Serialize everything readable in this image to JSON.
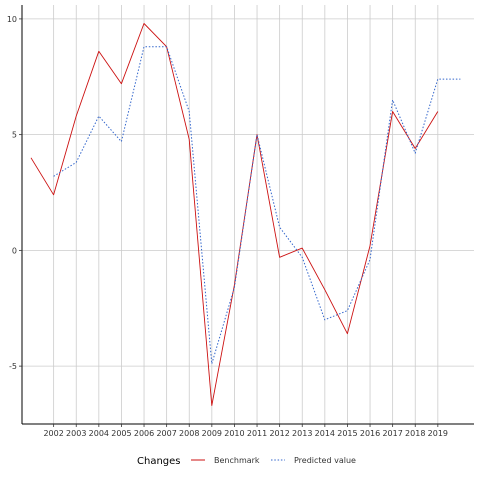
{
  "chart_data": {
    "type": "line",
    "title": "",
    "xlabel": "",
    "ylabel": "",
    "x": [
      2001,
      2002,
      2003,
      2004,
      2005,
      2006,
      2007,
      2008,
      2009,
      2010,
      2011,
      2012,
      2013,
      2014,
      2015,
      2016,
      2017,
      2018,
      2019,
      2020
    ],
    "x_tick_labels": [
      "2002",
      "2003",
      "2004",
      "2005",
      "2006",
      "2007",
      "2008",
      "2009",
      "2010",
      "2011",
      "2012",
      "2013",
      "2014",
      "2015",
      "2016",
      "2017",
      "2018",
      "2019"
    ],
    "y_ticks": [
      -5,
      0,
      5,
      10
    ],
    "y_tick_labels": [
      "-5",
      "0",
      "5",
      "10"
    ],
    "xlim": [
      2000.6,
      2020.6
    ],
    "ylim": [
      -7.5,
      10.6
    ],
    "grid": true,
    "legend": {
      "title": "Changes",
      "placement": "bottom",
      "entries": [
        "Benchmark",
        "Predicted value"
      ]
    },
    "series": [
      {
        "name": "Benchmark",
        "color": "#cc1111",
        "style": "solid",
        "x": [
          2001,
          2002,
          2003,
          2004,
          2005,
          2006,
          2007,
          2008,
          2009,
          2010,
          2011,
          2012,
          2013,
          2014,
          2015,
          2016,
          2017,
          2018,
          2019
        ],
        "values": [
          4.0,
          2.4,
          5.8,
          8.6,
          7.2,
          9.8,
          8.8,
          4.8,
          -6.7,
          -1.5,
          5.0,
          -0.3,
          0.1,
          -1.7,
          -3.6,
          0.2,
          6.0,
          4.4,
          6.0
        ]
      },
      {
        "name": "Predicted value",
        "color": "#3366cc",
        "style": "dotted",
        "x": [
          2002,
          2003,
          2004,
          2005,
          2006,
          2007,
          2008,
          2009,
          2010,
          2011,
          2012,
          2013,
          2014,
          2015,
          2016,
          2017,
          2018,
          2019,
          2020
        ],
        "values": [
          3.2,
          3.8,
          5.8,
          4.7,
          8.8,
          8.8,
          6.0,
          -4.9,
          -1.6,
          5.0,
          1.0,
          -0.3,
          -3.0,
          -2.6,
          -0.4,
          6.5,
          4.2,
          7.4,
          7.4
        ]
      }
    ]
  }
}
